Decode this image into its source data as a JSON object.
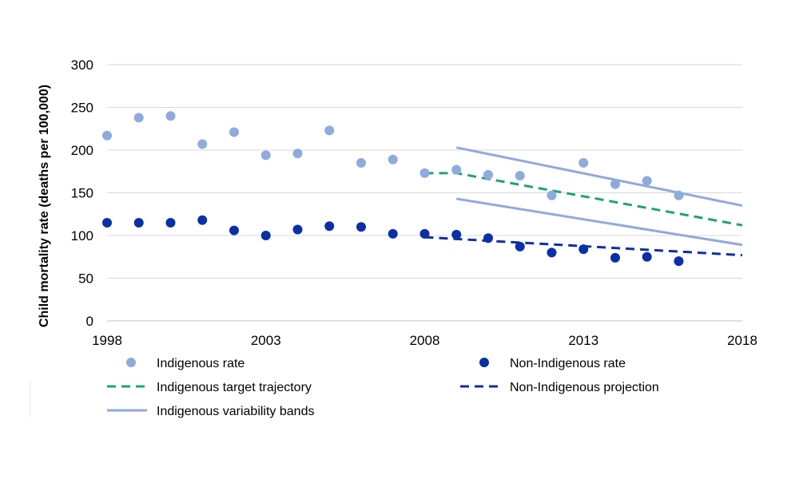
{
  "chart_data": {
    "type": "scatter",
    "title": "",
    "xlabel": "",
    "ylabel": "Child mortality rate (deaths per 100,000)",
    "xlim": [
      1998,
      2018
    ],
    "ylim": [
      0,
      300
    ],
    "x_ticks": [
      "1998",
      "2003",
      "2008",
      "2013",
      "2018"
    ],
    "y_ticks": [
      "0",
      "50",
      "100",
      "150",
      "200",
      "250",
      "300"
    ],
    "grid": "horizontal",
    "legend_position": "bottom",
    "series": [
      {
        "name": "Indigenous rate",
        "kind": "points",
        "color": "#8faadc",
        "x": [
          1998,
          1999,
          2000,
          2001,
          2002,
          2003,
          2004,
          2005,
          2006,
          2007,
          2008,
          2009,
          2010,
          2011,
          2012,
          2013,
          2014,
          2015,
          2016
        ],
        "y": [
          217,
          238,
          240,
          207,
          221,
          194,
          196,
          223,
          185,
          189,
          173,
          177,
          171,
          170,
          147,
          185,
          160,
          164,
          147
        ]
      },
      {
        "name": "Non-Indigenous rate",
        "kind": "points",
        "color": "#0b2fa8",
        "x": [
          1998,
          1999,
          2000,
          2001,
          2002,
          2003,
          2004,
          2005,
          2006,
          2007,
          2008,
          2009,
          2010,
          2011,
          2012,
          2013,
          2014,
          2015,
          2016
        ],
        "y": [
          115,
          115,
          115,
          118,
          106,
          100,
          107,
          111,
          110,
          102,
          102,
          101,
          97,
          87,
          80,
          84,
          74,
          75,
          70
        ]
      },
      {
        "name": "Indigenous target trajectory",
        "kind": "dashed-line",
        "color": "#1ca37a",
        "x": [
          2008,
          2009,
          2018
        ],
        "y": [
          173,
          173,
          112
        ]
      },
      {
        "name": "Non-Indigenous projection",
        "kind": "dashed-line",
        "color": "#0b2fa8",
        "x": [
          2008,
          2018
        ],
        "y": [
          98,
          77
        ]
      },
      {
        "name": "Indigenous variability bands",
        "kind": "line",
        "color": "#8faadc",
        "x": [
          2009,
          2018
        ],
        "y": [
          203,
          135
        ]
      },
      {
        "name": "Indigenous variability bands",
        "kind": "line",
        "color": "#8faadc",
        "x": [
          2009,
          2018
        ],
        "y": [
          143,
          89
        ]
      }
    ],
    "legend": [
      {
        "label": "Indigenous rate",
        "kind": "points",
        "color": "#8faadc"
      },
      {
        "label": "Non-Indigenous rate",
        "kind": "points",
        "color": "#0b2fa8"
      },
      {
        "label": "Indigenous target trajectory",
        "kind": "dashed-line",
        "color": "#1ca37a"
      },
      {
        "label": "Non-Indigenous projection",
        "kind": "dashed-line",
        "color": "#0b2fa8"
      },
      {
        "label": "Indigenous variability bands",
        "kind": "line",
        "color": "#8faadc"
      }
    ]
  }
}
